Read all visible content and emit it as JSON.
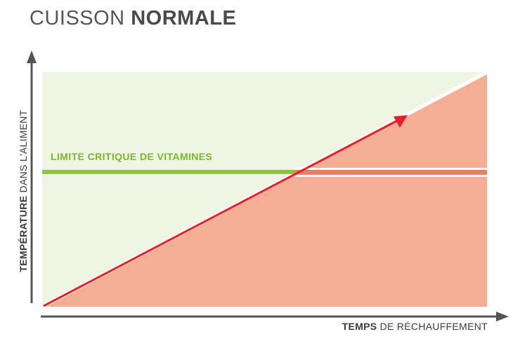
{
  "title": {
    "light": "CUISSON",
    "bold": "NORMALE"
  },
  "y_axis": {
    "bold": "TEMPÉRATURE",
    "rest": "DANS L'ALIMENT"
  },
  "x_axis": {
    "bold": "TEMPS",
    "rest": "DE RÉCHAUFFEMENT"
  },
  "limit_label": "LIMITE CRITIQUE DE VITAMINES",
  "colors": {
    "safe_zone": "#eff4e3",
    "danger_zone": "#f5ae93",
    "limit_line": "#8cc63f",
    "limit_line_danger": "#ec7f63",
    "heating_arrow": "#e0202a",
    "axis": "#555555"
  }
}
